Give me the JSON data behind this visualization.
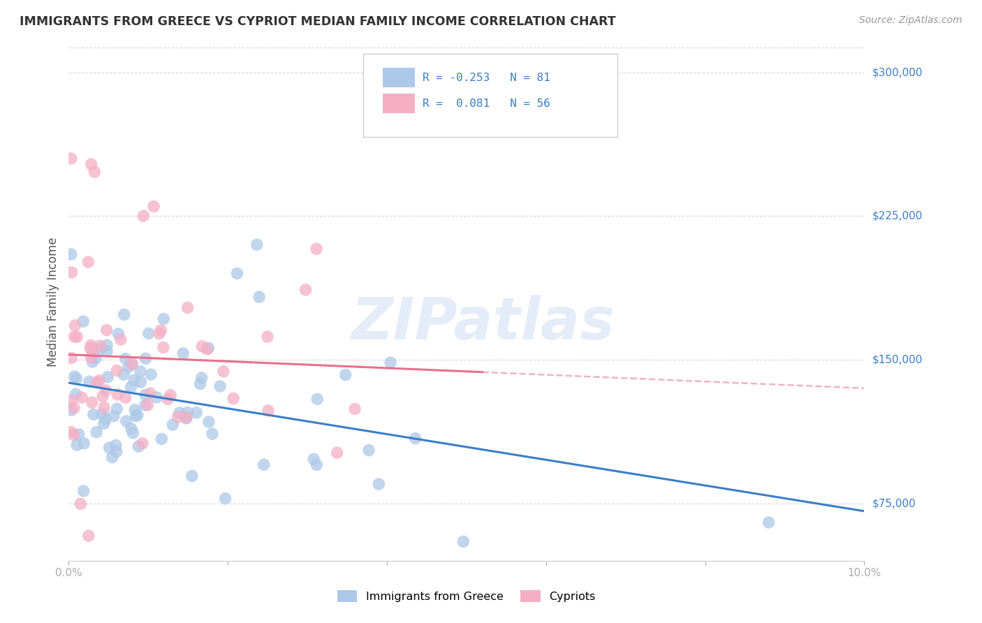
{
  "title": "IMMIGRANTS FROM GREECE VS CYPRIOT MEDIAN FAMILY INCOME CORRELATION CHART",
  "source": "Source: ZipAtlas.com",
  "ylabel": "Median Family Income",
  "watermark": "ZIPatlas",
  "y_ticks": [
    75000,
    150000,
    225000,
    300000
  ],
  "y_tick_labels": [
    "$75,000",
    "$150,000",
    "$225,000",
    "$300,000"
  ],
  "x_min": 0.0,
  "x_max": 0.1,
  "y_min": 45000,
  "y_max": 315000,
  "legend_label1": "Immigrants from Greece",
  "legend_label2": "Cypriots",
  "R1": -0.253,
  "N1": 81,
  "R2": 0.081,
  "N2": 56,
  "color1": "#adc8e8",
  "color2": "#f4afc5",
  "line1_color": "#3a7ec8",
  "line2_color": "#e8708c",
  "line2_dash_color": "#e8a0b8",
  "background_color": "#ffffff",
  "grid_color": "#d8d8d8",
  "title_color": "#333333",
  "right_label_color": "#3a7ec8",
  "source_color": "#999999",
  "ylabel_color": "#555555",
  "xtick_color": "#555555"
}
